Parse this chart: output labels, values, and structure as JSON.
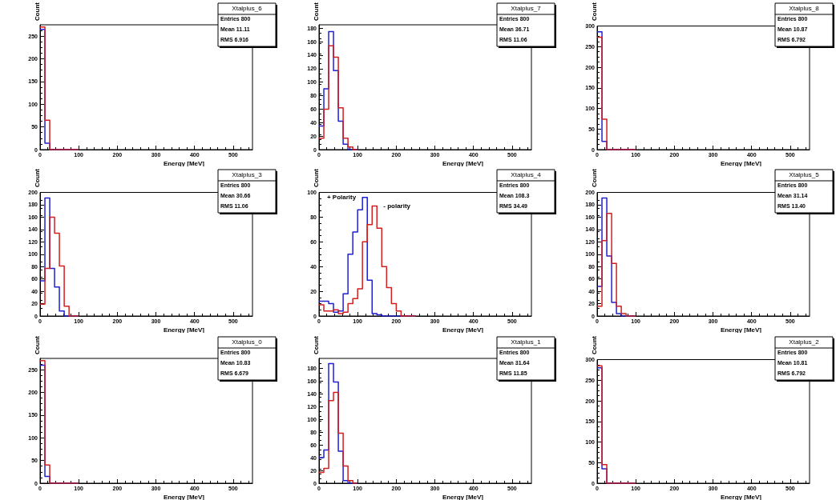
{
  "chart_data": [
    {
      "type": "histogram",
      "title": "Xtalplus_6",
      "xlabel": "Energy [MeV]",
      "ylabel": "Count",
      "annotations": [
        "Entries 800",
        "Mean 11.11",
        "RMS 6.916"
      ],
      "bins": [
        0,
        12.5,
        25,
        37.5,
        50,
        62.5,
        75,
        87.5,
        100
      ],
      "xlim": [
        0,
        550
      ],
      "xticks": [
        0,
        100,
        200,
        300,
        400,
        500
      ],
      "ylim": [
        0,
        275
      ],
      "yticks": [
        0,
        50,
        100,
        150,
        200,
        250
      ],
      "series": [
        {
          "color": "#2020d0",
          "values": [
            265,
            14,
            0,
            0,
            0,
            0,
            0,
            0
          ]
        },
        {
          "color": "#d02020",
          "values": [
            270,
            65,
            0,
            0,
            0,
            0,
            0,
            0
          ]
        }
      ]
    },
    {
      "type": "histogram",
      "title": "Xtalplus_7",
      "xlabel": "Energy [MeV]",
      "ylabel": "Count",
      "annotations": [
        "Entries 800",
        "Mean 36.71",
        "RMS 11.06"
      ],
      "bins": [
        0,
        12.5,
        25,
        37.5,
        50,
        62.5,
        75,
        87.5,
        100
      ],
      "xlim": [
        0,
        550
      ],
      "xticks": [
        0,
        100,
        200,
        300,
        400,
        500
      ],
      "ylim": [
        0,
        185
      ],
      "yticks": [
        0,
        20,
        40,
        60,
        80,
        100,
        120,
        140,
        160,
        180
      ],
      "series": [
        {
          "color": "#2020d0",
          "values": [
            35,
            90,
            175,
            117,
            42,
            8,
            0,
            0
          ]
        },
        {
          "color": "#d02020",
          "values": [
            17,
            60,
            154,
            137,
            62,
            17,
            4,
            0
          ]
        }
      ]
    },
    {
      "type": "histogram",
      "title": "Xtalplus_8",
      "xlabel": "Energy [MeV]",
      "ylabel": "Count",
      "annotations": [
        "Entries 800",
        "Mean 10.87",
        "RMS 6.792"
      ],
      "bins": [
        0,
        12.5,
        25,
        37.5,
        50,
        62.5,
        75,
        87.5,
        100
      ],
      "xlim": [
        0,
        550
      ],
      "xticks": [
        0,
        100,
        200,
        300,
        400,
        500
      ],
      "ylim": [
        0,
        300
      ],
      "yticks": [
        0,
        50,
        100,
        150,
        200,
        250,
        300
      ],
      "series": [
        {
          "color": "#2020d0",
          "values": [
            286,
            20,
            0,
            0,
            0,
            0,
            0,
            0
          ]
        },
        {
          "color": "#d02020",
          "values": [
            273,
            74,
            0,
            0,
            0,
            0,
            0,
            0
          ]
        }
      ]
    },
    {
      "type": "histogram",
      "title": "Xtalplus_3",
      "xlabel": "Energy [MeV]",
      "ylabel": "Count",
      "annotations": [
        "Entries 800",
        "Mean 30.66",
        "RMS 11.06"
      ],
      "bins": [
        0,
        12.5,
        25,
        37.5,
        50,
        62.5,
        75,
        87.5,
        100
      ],
      "xlim": [
        0,
        550
      ],
      "xticks": [
        0,
        100,
        200,
        300,
        400,
        500
      ],
      "ylim": [
        0,
        200
      ],
      "yticks": [
        0,
        20,
        40,
        60,
        80,
        100,
        120,
        140,
        160,
        180,
        200
      ],
      "series": [
        {
          "color": "#2020d0",
          "values": [
            57,
            191,
            77,
            47,
            8,
            0,
            0,
            0
          ]
        },
        {
          "color": "#d02020",
          "values": [
            19,
            77,
            160,
            134,
            81,
            16,
            0,
            0
          ]
        }
      ]
    },
    {
      "type": "histogram",
      "title": "Xtalplus_4",
      "xlabel": "Energy [MeV]",
      "ylabel": "Count",
      "annotations": [
        "Entries 800",
        "Mean 108.3",
        "RMS 34.49"
      ],
      "bins": [
        0,
        12.5,
        25,
        37.5,
        50,
        62.5,
        75,
        87.5,
        100,
        112.5,
        125,
        137.5,
        150,
        162.5,
        175,
        187.5,
        200,
        212.5,
        225,
        237.5,
        250
      ],
      "xlim": [
        0,
        550
      ],
      "xticks": [
        0,
        100,
        200,
        300,
        400,
        500
      ],
      "ylim": [
        0,
        100
      ],
      "yticks": [
        0,
        20,
        40,
        60,
        80,
        100
      ],
      "series": [
        {
          "name": "+ Polarity",
          "color": "#2020d0",
          "values": [
            12,
            12,
            10,
            3,
            4,
            18,
            50,
            68,
            86,
            96,
            29,
            2,
            1,
            0,
            0,
            0,
            0,
            0,
            0,
            0
          ]
        },
        {
          "name": "- polarity",
          "color": "#d02020",
          "values": [
            9,
            4,
            4,
            5,
            2,
            3,
            10,
            14,
            22,
            60,
            74,
            89,
            71,
            40,
            23,
            10,
            4,
            0,
            0,
            0
          ]
        }
      ]
    },
    {
      "type": "histogram",
      "title": "Xtalplus_5",
      "xlabel": "Energy [MeV]",
      "ylabel": "Count",
      "annotations": [
        "Entries 800",
        "Mean 31.14",
        "RMS 13.40"
      ],
      "bins": [
        0,
        12.5,
        25,
        37.5,
        50,
        62.5,
        75,
        87.5,
        100
      ],
      "xlim": [
        0,
        550
      ],
      "xticks": [
        0,
        100,
        200,
        300,
        400,
        500
      ],
      "ylim": [
        0,
        200
      ],
      "yticks": [
        0,
        20,
        40,
        60,
        80,
        100,
        120,
        140,
        160,
        180,
        200
      ],
      "series": [
        {
          "color": "#2020d0",
          "values": [
            48,
            191,
            97,
            22,
            4,
            0,
            0,
            0
          ]
        },
        {
          "color": "#d02020",
          "values": [
            16,
            122,
            166,
            85,
            16,
            4,
            0,
            0
          ]
        }
      ]
    },
    {
      "type": "histogram",
      "title": "Xtalplus_0",
      "xlabel": "Energy [MeV]",
      "ylabel": "Count",
      "annotations": [
        "Entries 800",
        "Mean 10.83",
        "RMS 6.679"
      ],
      "bins": [
        0,
        12.5,
        25,
        37.5,
        50,
        62.5,
        75,
        87.5,
        100
      ],
      "xlim": [
        0,
        550
      ],
      "xticks": [
        0,
        100,
        200,
        300,
        400,
        500
      ],
      "ylim": [
        0,
        275
      ],
      "yticks": [
        0,
        50,
        100,
        150,
        200,
        250
      ],
      "series": [
        {
          "color": "#2020d0",
          "values": [
            260,
            15,
            0,
            0,
            0,
            0,
            0,
            0
          ]
        },
        {
          "color": "#d02020",
          "values": [
            270,
            40,
            0,
            0,
            0,
            0,
            0,
            0
          ]
        }
      ]
    },
    {
      "type": "histogram",
      "title": "Xtalplus_1",
      "xlabel": "Energy [MeV]",
      "ylabel": "Count",
      "annotations": [
        "Entries 800",
        "Mean 31.64",
        "RMS 11.85"
      ],
      "bins": [
        0,
        12.5,
        25,
        37.5,
        50,
        62.5,
        75,
        87.5,
        100
      ],
      "xlim": [
        0,
        550
      ],
      "xticks": [
        0,
        100,
        200,
        300,
        400,
        500
      ],
      "ylim": [
        0,
        195
      ],
      "yticks": [
        0,
        20,
        40,
        60,
        80,
        100,
        120,
        140,
        160,
        180
      ],
      "series": [
        {
          "color": "#2020d0",
          "values": [
            40,
            52,
            187,
            158,
            50,
            4,
            0,
            0
          ]
        },
        {
          "color": "#d02020",
          "values": [
            17,
            23,
            129,
            142,
            78,
            27,
            4,
            0
          ]
        }
      ]
    },
    {
      "type": "histogram",
      "title": "Xtalplus_2",
      "xlabel": "Energy [MeV]",
      "ylabel": "Count",
      "annotations": [
        "Entries 800",
        "Mean 10.81",
        "RMS 6.792"
      ],
      "bins": [
        0,
        12.5,
        25,
        37.5,
        50,
        62.5,
        75,
        87.5,
        100
      ],
      "xlim": [
        0,
        550
      ],
      "xticks": [
        0,
        100,
        200,
        300,
        400,
        500
      ],
      "ylim": [
        0,
        300
      ],
      "yticks": [
        0,
        50,
        100,
        150,
        200,
        250,
        300
      ],
      "series": [
        {
          "color": "#2020d0",
          "values": [
            280,
            35,
            0,
            0,
            0,
            0,
            0,
            0
          ]
        },
        {
          "color": "#d02020",
          "values": [
            285,
            45,
            0,
            0,
            0,
            0,
            0,
            0
          ]
        }
      ]
    }
  ]
}
